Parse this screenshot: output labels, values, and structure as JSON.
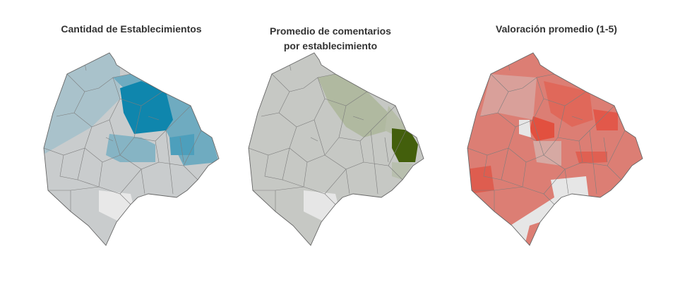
{
  "maps": [
    {
      "title": [
        "Cantidad de Establecimientos"
      ]
    },
    {
      "title": [
        "Promedio de comentarios",
        "por establecimiento"
      ]
    },
    {
      "title": [
        "Valoración promedio (1-5)"
      ]
    }
  ]
}
